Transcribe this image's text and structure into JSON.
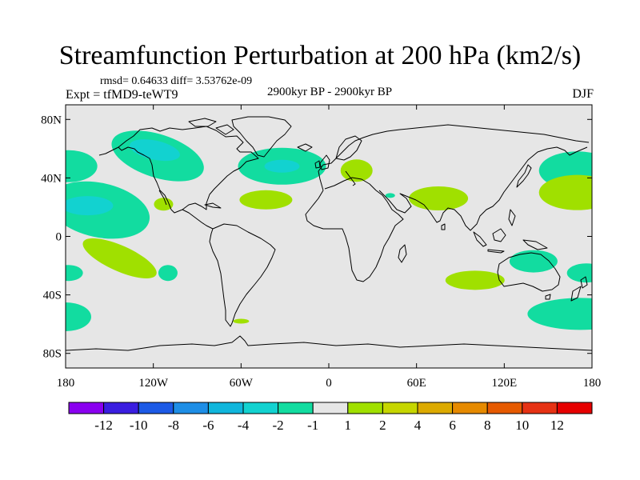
{
  "chart_data": {
    "type": "heatmap",
    "title": "Streamfunction Perturbation at 200 hPa (km2/s)",
    "rmsd_text": "rmsd= 0.64633 diff= 3.53762e-09",
    "experiment": "Expt = tfMD9-teWT9",
    "period": "2900kyr BP - 2900kyr BP",
    "season": "DJF",
    "xlim": [
      -180,
      180
    ],
    "ylim": [
      -90,
      90
    ],
    "x_ticks": [
      {
        "value": -180,
        "label": "180"
      },
      {
        "value": -120,
        "label": "120W"
      },
      {
        "value": -60,
        "label": "60W"
      },
      {
        "value": 0,
        "label": "0"
      },
      {
        "value": 60,
        "label": "60E"
      },
      {
        "value": 120,
        "label": "120E"
      },
      {
        "value": 180,
        "label": "180"
      }
    ],
    "y_ticks": [
      {
        "value": 80,
        "label": "80N"
      },
      {
        "value": 40,
        "label": "40N"
      },
      {
        "value": 0,
        "label": "0"
      },
      {
        "value": -40,
        "label": "40S"
      },
      {
        "value": -80,
        "label": "80S"
      }
    ],
    "colorbar": {
      "labels": [
        "-12",
        "-10",
        "-8",
        "-6",
        "-4",
        "-2",
        "-1",
        "1",
        "2",
        "4",
        "6",
        "8",
        "10",
        "12"
      ],
      "colors": [
        "#8a00f0",
        "#3a1ee0",
        "#1c5ae6",
        "#1e8ee6",
        "#10b6dc",
        "#12d2d0",
        "#12dca0",
        "#e6e6e6",
        "#a0e000",
        "#c6d600",
        "#dcaa00",
        "#e68a00",
        "#e65a00",
        "#e63214",
        "#e60000"
      ]
    },
    "anomalies": [
      {
        "name": "north-pacific-west",
        "lon": -178,
        "lat": 48,
        "level": "-1"
      },
      {
        "name": "central-pacific-low",
        "lon": -157,
        "lat": 18,
        "level": "-1"
      },
      {
        "name": "central-pacific-core",
        "lon": -165,
        "lat": 21,
        "level": "-2"
      },
      {
        "name": "north-america-west",
        "lon": -117,
        "lat": 55,
        "level": "-1"
      },
      {
        "name": "north-america-core",
        "lon": -119,
        "lat": 59,
        "level": "-2"
      },
      {
        "name": "mexico-positive",
        "lon": -113,
        "lat": 22,
        "level": "1"
      },
      {
        "name": "north-atlantic",
        "lon": -32,
        "lat": 48,
        "level": "-1"
      },
      {
        "name": "north-atlantic-core",
        "lon": -32,
        "lat": 48,
        "level": "-2"
      },
      {
        "name": "subtropical-atlantic",
        "lon": -43,
        "lat": 25,
        "level": "1"
      },
      {
        "name": "europe-positive",
        "lon": 19,
        "lat": 45,
        "level": "1"
      },
      {
        "name": "middle-east-speck",
        "lon": 42,
        "lat": 28,
        "level": "-1"
      },
      {
        "name": "south-asia-positive",
        "lon": 75,
        "lat": 26,
        "level": "1"
      },
      {
        "name": "west-pacific-north",
        "lon": 170,
        "lat": 45,
        "level": "-1"
      },
      {
        "name": "west-pacific-positive",
        "lon": 170,
        "lat": 30,
        "level": "1"
      },
      {
        "name": "south-pacific-positive",
        "lon": -143,
        "lat": -15,
        "level": "1"
      },
      {
        "name": "south-pacific-west",
        "lon": -178,
        "lat": -25,
        "level": "-1"
      },
      {
        "name": "south-pacific-mid",
        "lon": -110,
        "lat": -25,
        "level": "-1"
      },
      {
        "name": "indian-ocean-south",
        "lon": 100,
        "lat": -30,
        "level": "1"
      },
      {
        "name": "australia-north",
        "lon": 140,
        "lat": -17,
        "level": "-1"
      },
      {
        "name": "tasman-east",
        "lon": 176,
        "lat": -25,
        "level": "-1"
      },
      {
        "name": "southern-ocean-pacific",
        "lon": -180,
        "lat": -55,
        "level": "-1"
      },
      {
        "name": "southern-ocean-west",
        "lon": 172,
        "lat": -53,
        "level": "-1"
      },
      {
        "name": "drake-passage",
        "lon": -60,
        "lat": -58,
        "level": "1"
      }
    ]
  }
}
